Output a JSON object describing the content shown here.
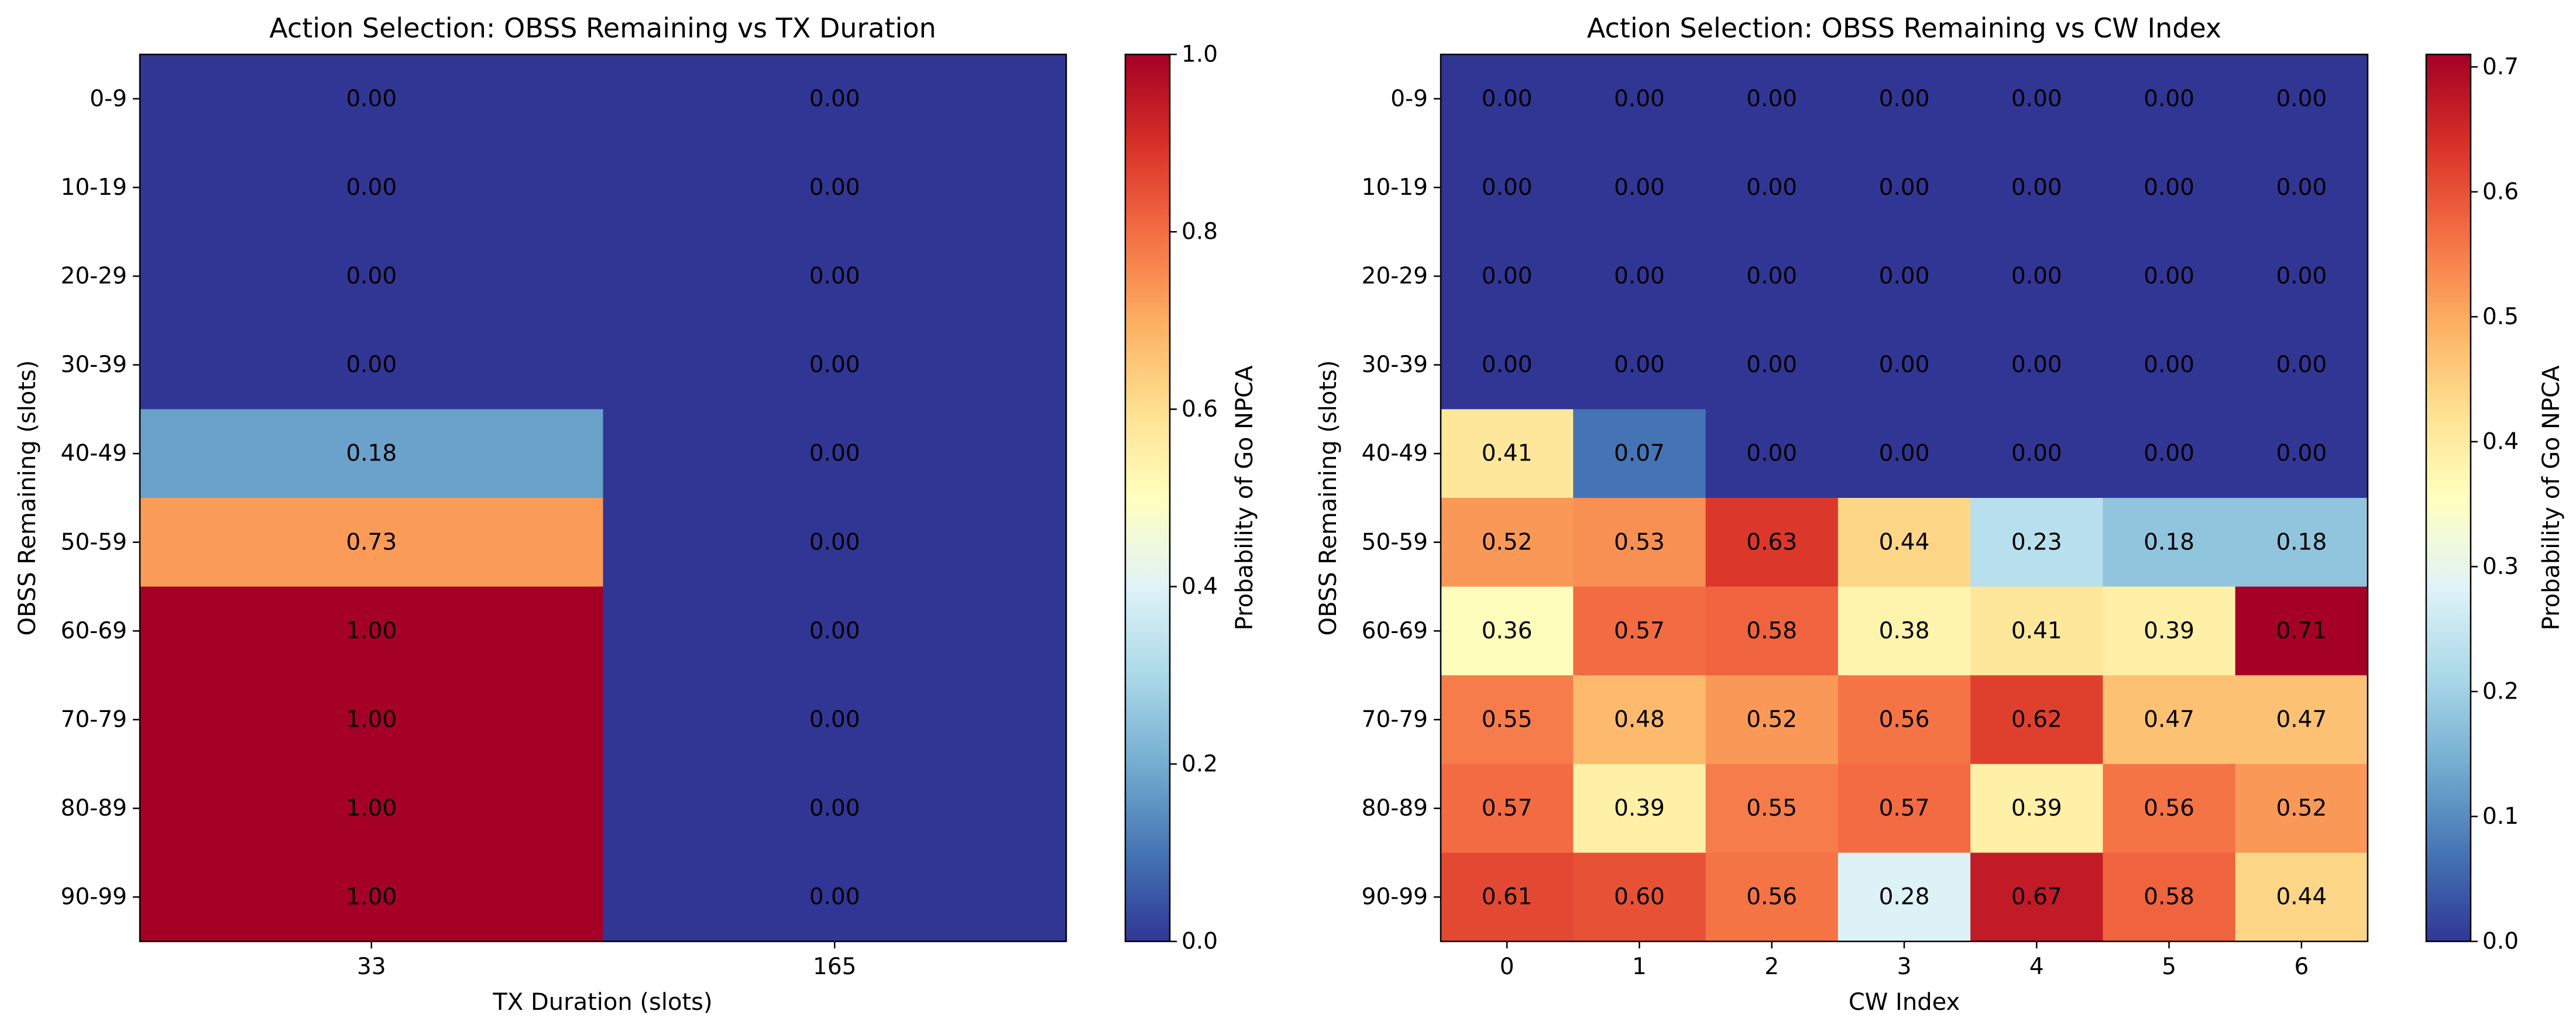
{
  "chart_data": [
    {
      "type": "heatmap",
      "title": "Action Selection: OBSS Remaining vs TX Duration",
      "xlabel": "TX Duration (slots)",
      "ylabel": "OBSS Remaining (slots)",
      "x_categories": [
        "33",
        "165"
      ],
      "y_categories": [
        "0-9",
        "10-19",
        "20-29",
        "30-39",
        "40-49",
        "50-59",
        "60-69",
        "70-79",
        "80-89",
        "90-99"
      ],
      "values": [
        [
          0.0,
          0.0
        ],
        [
          0.0,
          0.0
        ],
        [
          0.0,
          0.0
        ],
        [
          0.0,
          0.0
        ],
        [
          0.18,
          0.0
        ],
        [
          0.73,
          0.0
        ],
        [
          1.0,
          0.0
        ],
        [
          1.0,
          0.0
        ],
        [
          1.0,
          0.0
        ],
        [
          1.0,
          0.0
        ]
      ],
      "colorbar": {
        "label": "Probability of Go NPCA",
        "min": 0.0,
        "max": 1.0,
        "ticks": [
          "0.0",
          "0.2",
          "0.4",
          "0.6",
          "0.8",
          "1.0"
        ],
        "colormap": "RdYlBu_r"
      }
    },
    {
      "type": "heatmap",
      "title": "Action Selection: OBSS Remaining vs CW Index",
      "xlabel": "CW Index",
      "ylabel": "OBSS Remaining (slots)",
      "x_categories": [
        "0",
        "1",
        "2",
        "3",
        "4",
        "5",
        "6"
      ],
      "y_categories": [
        "0-9",
        "10-19",
        "20-29",
        "30-39",
        "40-49",
        "50-59",
        "60-69",
        "70-79",
        "80-89",
        "90-99"
      ],
      "values": [
        [
          0.0,
          0.0,
          0.0,
          0.0,
          0.0,
          0.0,
          0.0
        ],
        [
          0.0,
          0.0,
          0.0,
          0.0,
          0.0,
          0.0,
          0.0
        ],
        [
          0.0,
          0.0,
          0.0,
          0.0,
          0.0,
          0.0,
          0.0
        ],
        [
          0.0,
          0.0,
          0.0,
          0.0,
          0.0,
          0.0,
          0.0
        ],
        [
          0.41,
          0.07,
          0.0,
          0.0,
          0.0,
          0.0,
          0.0
        ],
        [
          0.52,
          0.53,
          0.63,
          0.44,
          0.23,
          0.18,
          0.18
        ],
        [
          0.36,
          0.57,
          0.58,
          0.38,
          0.41,
          0.39,
          0.71
        ],
        [
          0.55,
          0.48,
          0.52,
          0.56,
          0.62,
          0.47,
          0.47
        ],
        [
          0.57,
          0.39,
          0.55,
          0.57,
          0.39,
          0.56,
          0.52
        ],
        [
          0.61,
          0.6,
          0.56,
          0.28,
          0.67,
          0.58,
          0.44
        ]
      ],
      "colorbar": {
        "label": "Probability of Go NPCA",
        "min": 0.0,
        "max": 0.71,
        "ticks": [
          "0.0",
          "0.1",
          "0.2",
          "0.3",
          "0.4",
          "0.5",
          "0.6",
          "0.7"
        ],
        "colormap": "RdYlBu_r"
      }
    }
  ]
}
